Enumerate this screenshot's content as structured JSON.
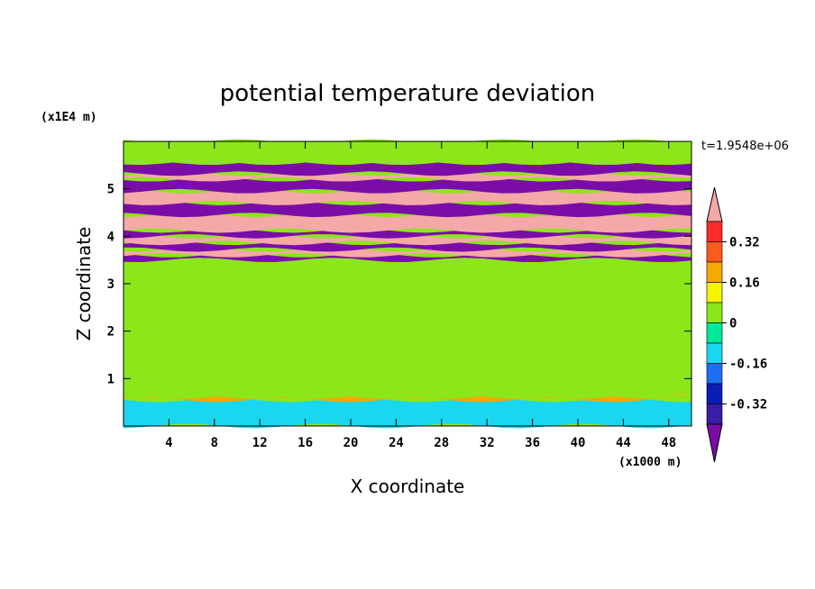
{
  "chart_data": {
    "type": "heatmap",
    "title": "potential temperature deviation",
    "xlabel": "X coordinate",
    "ylabel": "Z coordinate",
    "x_units_label": "(x1000 m)",
    "y_units_label": "(x1E4 m)",
    "time_label": "t=1.9548e+06",
    "xlim": [
      0,
      50
    ],
    "ylim": [
      0,
      6
    ],
    "x_ticks": [
      4,
      8,
      12,
      16,
      20,
      24,
      28,
      32,
      36,
      40,
      44,
      48
    ],
    "y_ticks": [
      1,
      2,
      3,
      4,
      5
    ],
    "colorbar": {
      "levels": [
        -0.4,
        -0.32,
        -0.24,
        -0.16,
        -0.08,
        0,
        0.08,
        0.16,
        0.24,
        0.32,
        0.4
      ],
      "colors": [
        "#7a0da8",
        "#3a1ca6",
        "#0a1eb4",
        "#1e6ff0",
        "#19d7f0",
        "#00e89a",
        "#8ce61a",
        "#f5f500",
        "#f5a800",
        "#ff5a1e",
        "#ff2a2a",
        "#f5a8a8"
      ],
      "tick_labels": [
        "0.32",
        "0.16",
        "0",
        "-0.16",
        "-0.32"
      ],
      "tick_values": [
        0.32,
        0.16,
        0,
        -0.16,
        -0.32
      ]
    },
    "bands": [
      {
        "z0": 0.0,
        "z1": 0.55,
        "value": -0.1
      },
      {
        "z0": 0.55,
        "z1": 0.62,
        "value": 0.2
      },
      {
        "z0": 0.62,
        "z1": 1.2,
        "value": 0.02
      },
      {
        "z0": 1.2,
        "z1": 2.0,
        "value": 0.05
      },
      {
        "z0": 2.0,
        "z1": 2.6,
        "value": 0.03
      },
      {
        "z0": 2.6,
        "z1": 3.3,
        "value": 0.0
      },
      {
        "z0": 3.3,
        "z1": 3.5,
        "value": 0.03
      },
      {
        "z0": 3.5,
        "z1": 3.6,
        "value": -0.42
      },
      {
        "z0": 3.6,
        "z1": 3.72,
        "value": 0.42
      },
      {
        "z0": 3.72,
        "z1": 3.86,
        "value": -0.42
      },
      {
        "z0": 3.86,
        "z1": 4.0,
        "value": 0.42
      },
      {
        "z0": 4.0,
        "z1": 4.12,
        "value": -0.42
      },
      {
        "z0": 4.12,
        "z1": 4.45,
        "value": 0.42
      },
      {
        "z0": 4.45,
        "z1": 4.7,
        "value": -0.42
      },
      {
        "z0": 4.7,
        "z1": 4.95,
        "value": 0.42
      },
      {
        "z0": 4.95,
        "z1": 5.2,
        "value": -0.42
      },
      {
        "z0": 5.2,
        "z1": 5.32,
        "value": 0.42
      },
      {
        "z0": 5.32,
        "z1": 5.55,
        "value": -0.42
      },
      {
        "z0": 5.55,
        "z1": 6.0,
        "value": 0.05
      }
    ]
  }
}
